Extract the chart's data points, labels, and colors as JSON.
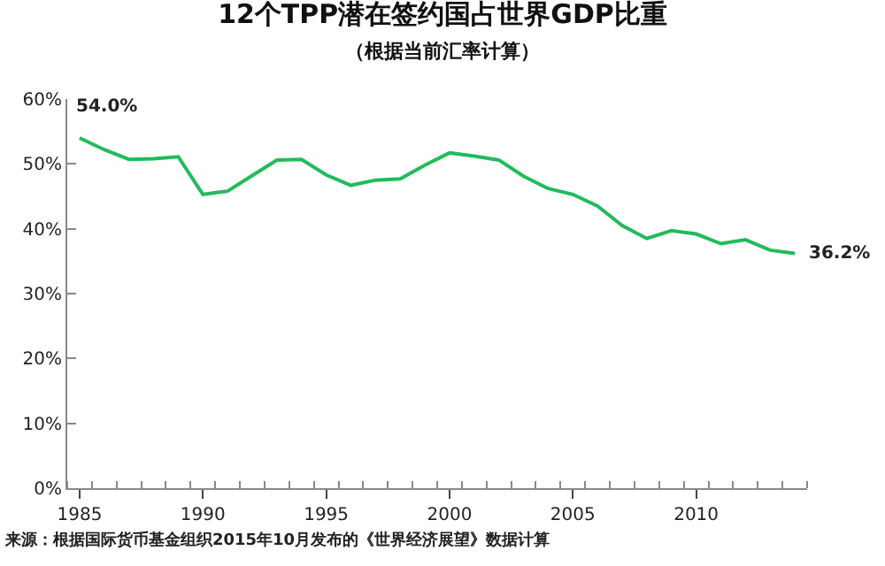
{
  "chart_data": {
    "type": "line",
    "title": "12个TPP潜在签约国占世界GDP比重",
    "subtitle": "（根据当前汇率计算）",
    "annotations": [
      {
        "text": "54.0%",
        "x": 1985,
        "y": 54.0
      },
      {
        "text": "36.2%",
        "x": 2014,
        "y": 36.2
      },
      "来源：根据国际货币基金组织2015年10月发布的《世界经济展望》数据计算"
    ],
    "x": [
      1985,
      1986,
      1987,
      1988,
      1989,
      1990,
      1991,
      1992,
      1993,
      1994,
      1995,
      1996,
      1997,
      1998,
      1999,
      2000,
      2001,
      2002,
      2003,
      2004,
      2005,
      2006,
      2007,
      2008,
      2009,
      2010,
      2011,
      2012,
      2013,
      2014
    ],
    "series": [
      {
        "color": "#22bb5a",
        "values": [
          54.0,
          52.2,
          50.7,
          50.8,
          51.1,
          45.3,
          45.8,
          48.2,
          50.6,
          50.7,
          48.3,
          46.7,
          47.5,
          47.7,
          49.8,
          51.7,
          51.2,
          50.6,
          48.1,
          46.2,
          45.3,
          43.5,
          40.5,
          38.5,
          39.7,
          39.2,
          37.7,
          38.3,
          36.7,
          36.2
        ]
      }
    ],
    "xlim": [
      1984.5,
      2014.5
    ],
    "xticks": [
      1985,
      1990,
      1995,
      2000,
      2005,
      2010
    ],
    "ylim": [
      0,
      60
    ],
    "yticks": [
      {
        "value": 0,
        "label": "0%"
      },
      {
        "value": 10,
        "label": "10%"
      },
      {
        "value": 20,
        "label": "20%"
      },
      {
        "value": 30,
        "label": "30%"
      },
      {
        "value": 40,
        "label": "40%"
      },
      {
        "value": 50,
        "label": "50%"
      },
      {
        "value": 60,
        "label": "60%"
      }
    ],
    "marker": "none",
    "line_style": "solid"
  }
}
